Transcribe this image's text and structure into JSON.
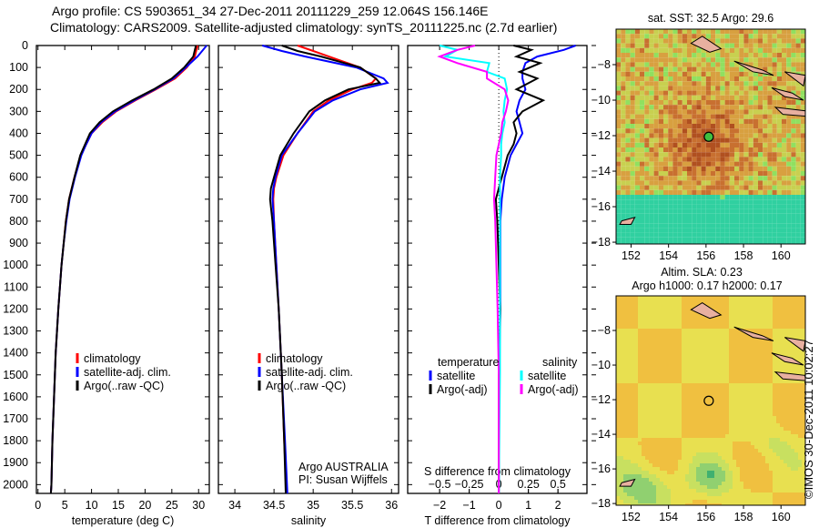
{
  "title_line1": "Argo profile: CS 5903651_34 27-Dec-2011 20111229_259 12.064S 156.146E",
  "title_line2": "Climatology: CARS2009. Satellite-adjusted climatology: synTS_20111225.nc (2.7d earlier)",
  "credit": "©IMOS 30-Dec-2011 10:02:27",
  "colors": {
    "climatology": "#ff0000",
    "satellite": "#0000ff",
    "argo": "#000000",
    "sal_satellite": "#00ffff",
    "sal_argo": "#ff00ff"
  },
  "chart_data": [
    {
      "type": "line",
      "name": "temperature",
      "xlabel": "temperature (deg C)",
      "xlim": [
        -0.3,
        32
      ],
      "ylim": [
        0,
        2040
      ],
      "xticks": [
        0,
        5,
        10,
        15,
        20,
        25,
        30
      ],
      "yticks": [
        0,
        100,
        200,
        300,
        400,
        500,
        600,
        700,
        800,
        900,
        1000,
        1100,
        1200,
        1300,
        1400,
        1500,
        1600,
        1700,
        1800,
        1900,
        2000
      ],
      "depth": [
        0,
        50,
        100,
        150,
        200,
        250,
        300,
        350,
        400,
        450,
        500,
        600,
        700,
        800,
        900,
        1000,
        1200,
        1400,
        1600,
        1800,
        2000,
        2040
      ],
      "series": [
        {
          "name": "climatology",
          "color": "#ff0000",
          "values": [
            29.8,
            29.3,
            27.8,
            25.6,
            22.0,
            18.2,
            14.6,
            12.0,
            10.0,
            9.0,
            8.0,
            6.8,
            5.8,
            5.2,
            4.8,
            4.4,
            3.8,
            3.3,
            3.0,
            2.7,
            2.5,
            2.4
          ]
        },
        {
          "name": "satellite-adj. clim.",
          "color": "#0000ff",
          "values": [
            31.5,
            29.8,
            27.6,
            25.3,
            21.8,
            18.0,
            14.4,
            11.8,
            10.0,
            9.0,
            8.1,
            6.9,
            5.9,
            5.3,
            4.8,
            4.4,
            3.8,
            3.3,
            3.0,
            2.7,
            2.5,
            2.4
          ]
        },
        {
          "name": "Argo(..raw -QC)",
          "color": "#000000",
          "values": [
            29.5,
            29.0,
            27.3,
            25.0,
            21.6,
            17.6,
            14.0,
            11.5,
            9.7,
            8.8,
            7.9,
            6.8,
            5.8,
            5.2,
            4.8,
            4.4,
            3.8,
            3.3,
            3.0,
            2.7,
            2.5,
            2.4
          ]
        }
      ],
      "legend": [
        "climatology",
        "satellite-adj. clim.",
        "Argo(..raw -QC)"
      ]
    },
    {
      "type": "line",
      "name": "salinity",
      "xlabel": "salinity",
      "xlim": [
        33.79,
        36.09
      ],
      "ylim": [
        0,
        2040
      ],
      "xticks": [
        34,
        34.5,
        35,
        35.5,
        36
      ],
      "depth": [
        0,
        25,
        50,
        100,
        150,
        170,
        200,
        250,
        300,
        400,
        500,
        600,
        650,
        700,
        800,
        1000,
        1200,
        1500,
        1800,
        2040
      ],
      "series": [
        {
          "name": "climatology",
          "color": "#ff0000",
          "values": [
            34.8,
            35.0,
            35.2,
            35.6,
            35.8,
            35.75,
            35.5,
            35.2,
            35.0,
            34.8,
            34.62,
            34.53,
            34.5,
            34.49,
            34.5,
            34.53,
            34.56,
            34.6,
            34.63,
            34.66
          ]
        },
        {
          "name": "satellite-adj. clim.",
          "color": "#0000ff",
          "values": [
            34.35,
            34.6,
            34.9,
            35.55,
            35.9,
            35.95,
            35.6,
            35.25,
            35.02,
            34.8,
            34.6,
            34.52,
            34.49,
            34.48,
            34.5,
            34.53,
            34.56,
            34.6,
            34.64,
            34.67
          ]
        },
        {
          "name": "Argo(..raw -QC)",
          "color": "#000000",
          "values": [
            34.6,
            34.8,
            35.1,
            35.6,
            35.8,
            35.85,
            35.45,
            35.15,
            34.95,
            34.75,
            34.58,
            34.5,
            34.46,
            34.45,
            34.48,
            34.52,
            34.56,
            34.6,
            34.63,
            34.65
          ]
        }
      ],
      "legend": [
        "climatology",
        "satellite-adj. clim.",
        "Argo(..raw -QC)"
      ],
      "annotation": [
        "Argo AUSTRALIA",
        "PI: Susan Wijffels"
      ]
    },
    {
      "type": "line",
      "name": "difference",
      "xlabel": "T difference from climatology",
      "x2label": "S difference from climatology",
      "xlim": [
        -3.08,
        2.98
      ],
      "ylim": [
        0,
        2040
      ],
      "xticks": [
        -2,
        -1,
        0,
        1,
        2
      ],
      "x2ticks": [
        -0.5,
        -0.25,
        0,
        0.25,
        0.5
      ],
      "x2_per_x": 4,
      "depth": [
        0,
        20,
        50,
        80,
        120,
        150,
        200,
        250,
        300,
        350,
        400,
        450,
        500,
        600,
        700,
        800,
        1000,
        1200,
        1500,
        2040
      ],
      "series": [
        {
          "name": "temperature satellite",
          "color": "#0000ff",
          "values": [
            2.6,
            2.2,
            1.3,
            0.9,
            0.8,
            0.8,
            0.9,
            0.7,
            0.6,
            0.7,
            0.8,
            0.6,
            0.4,
            0.2,
            0.1,
            0.05,
            0.05,
            0.05,
            0.02,
            0.0
          ]
        },
        {
          "name": "temperature Argo(-adj)",
          "color": "#000000",
          "values": [
            0.5,
            1.1,
            0.6,
            1.4,
            0.7,
            1.3,
            0.6,
            1.5,
            0.8,
            0.5,
            0.6,
            0.5,
            0.3,
            0.1,
            -0.1,
            -0.05,
            0.0,
            0.05,
            0.0,
            0.0
          ]
        },
        {
          "name": "salinity satellite",
          "color": "#00ffff",
          "values": [
            -0.5,
            -0.35,
            -0.45,
            -0.08,
            -0.1,
            0.05,
            0.07,
            0.05,
            0.04,
            0.05,
            0.03,
            0.02,
            0.02,
            0.01,
            0.01,
            0.01,
            0.01,
            0.01,
            0.01,
            0.0
          ]
        },
        {
          "name": "salinity Argo(-adj)",
          "color": "#ff00ff",
          "values": [
            -0.2,
            -0.35,
            -0.5,
            -0.35,
            -0.1,
            -0.1,
            0.05,
            0.08,
            0.06,
            0.03,
            0.02,
            0.0,
            -0.02,
            -0.03,
            -0.04,
            -0.03,
            -0.02,
            -0.01,
            0.0,
            0.0
          ]
        }
      ],
      "legend_headers": [
        "temperature",
        "salinity"
      ],
      "legend": [
        "satellite",
        "Argo(-adj)",
        "satellite",
        "Argo(-adj)"
      ]
    },
    {
      "type": "heatmap",
      "name": "sst-map",
      "title": "sat. SST: 32.5 Argo: 29.6",
      "xticks": [
        152,
        154,
        156,
        158,
        160
      ],
      "yticks": [
        -8,
        -10,
        -12,
        -14,
        -16,
        -18
      ],
      "xlim": [
        151.2,
        161.3
      ],
      "ylim": [
        -18.1,
        -6.0
      ],
      "argo_position": [
        156.146,
        -12.064
      ]
    },
    {
      "type": "heatmap",
      "name": "sla-map",
      "title": "Altim. SLA: 0.23",
      "subtitle": "Argo h1000: 0.17 h2000: 0.17",
      "xticks": [
        152,
        154,
        156,
        158,
        160
      ],
      "yticks": [
        -8,
        -10,
        -12,
        -14,
        -16,
        -18
      ],
      "xlim": [
        151.2,
        161.3
      ],
      "ylim": [
        -18.1,
        -6.0
      ],
      "argo_position": [
        156.146,
        -12.064
      ]
    }
  ]
}
